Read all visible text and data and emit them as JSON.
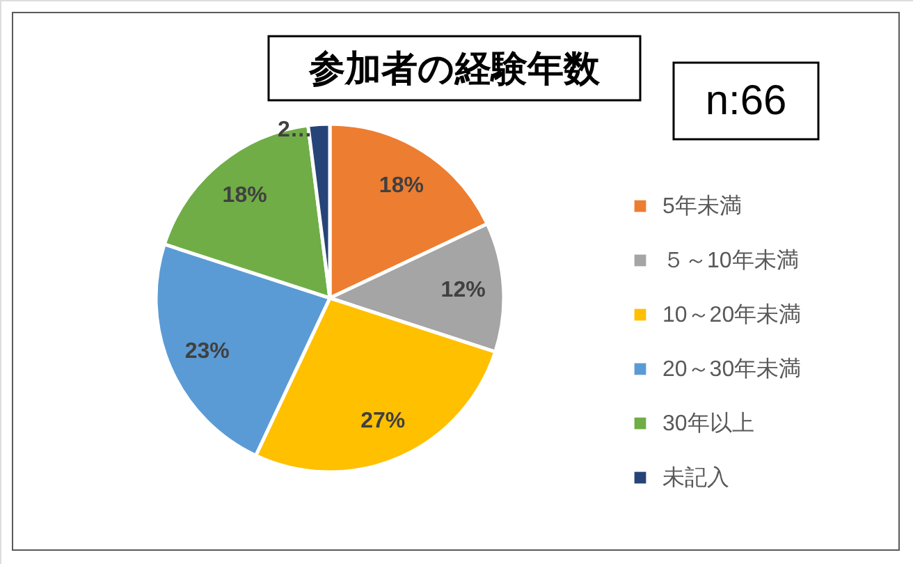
{
  "chart_data": {
    "type": "pie",
    "title": "参加者の経験年数",
    "annotations": [
      "n:66"
    ],
    "categories": [
      "5年未満",
      "５～10年未満",
      "10～20年未満",
      "20～30年未満",
      "30年以上",
      "未記入"
    ],
    "values": [
      18,
      12,
      27,
      23,
      18,
      2
    ],
    "colors": [
      "#ed7d31",
      "#a5a5a5",
      "#ffc000",
      "#5b9bd5",
      "#70ad47",
      "#264478"
    ],
    "value_labels": [
      "18%",
      "12%",
      "27%",
      "23%",
      "18%",
      "2…"
    ],
    "legend": "right"
  }
}
